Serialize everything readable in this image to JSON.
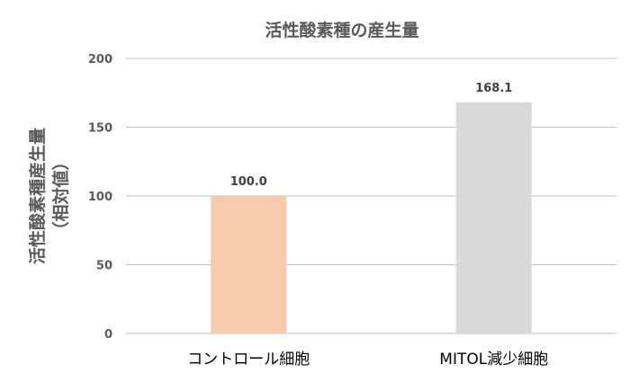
{
  "chart_data": {
    "type": "bar",
    "title": "活性酸素種の産生量",
    "ylabel_line1": "活性酸素種産生量",
    "ylabel_line2": "（相対値）",
    "xlabel": "",
    "categories": [
      "コントロール細胞",
      "MITOL減少細胞"
    ],
    "values": [
      100.0,
      168.1
    ],
    "data_labels": [
      "100.0",
      "168.1"
    ],
    "ylim": [
      0,
      200
    ],
    "yticks": [
      0,
      50,
      100,
      150,
      200
    ],
    "grid": true,
    "colors": [
      "#f8cbad",
      "#d9d9d9"
    ]
  }
}
